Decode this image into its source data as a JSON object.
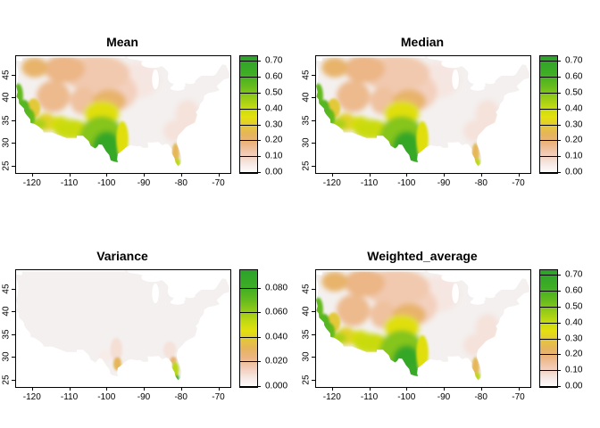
{
  "figure": {
    "background": "#ffffff"
  },
  "colors": {
    "land_base": "#F3F0EF",
    "frame": "#000000",
    "text": "#000000"
  },
  "palette": {
    "stops": [
      [
        0.0,
        "#FFFFFF"
      ],
      [
        0.08,
        "#F6E7E2"
      ],
      [
        0.16,
        "#F2CDB9"
      ],
      [
        0.25,
        "#ECB583"
      ],
      [
        0.33,
        "#E6B45D"
      ],
      [
        0.41,
        "#E3C936"
      ],
      [
        0.48,
        "#E4E00E"
      ],
      [
        0.56,
        "#C3DA12"
      ],
      [
        0.64,
        "#99CC18"
      ],
      [
        0.74,
        "#67BB1E"
      ],
      [
        0.85,
        "#3FAD25"
      ],
      [
        1.0,
        "#2BA22B"
      ]
    ]
  },
  "region_profiles": {
    "mean_like": [
      {
        "name": "northern-plains-salmon",
        "lon": -103.0,
        "lat": 45.5,
        "rx": 9.0,
        "ry": 4.0,
        "value": 0.13
      },
      {
        "name": "central-plains-salmon",
        "lon": -99.0,
        "lat": 41.5,
        "rx": 7.0,
        "ry": 4.5,
        "value": 0.11
      },
      {
        "name": "upper-midwest-faint",
        "lon": -92.0,
        "lat": 44.0,
        "rx": 6.0,
        "ry": 4.0,
        "value": 0.06
      },
      {
        "name": "pacific-nw-interior-tan",
        "lon": -119.5,
        "lat": 46.8,
        "rx": 3.5,
        "ry": 2.2,
        "value": 0.22
      },
      {
        "name": "northern-rockies-tan",
        "lon": -111.5,
        "lat": 46.5,
        "rx": 5.5,
        "ry": 3.0,
        "value": 0.18
      },
      {
        "name": "great-basin-tan",
        "lon": -114.5,
        "lat": 40.5,
        "rx": 4.5,
        "ry": 3.5,
        "value": 0.17
      },
      {
        "name": "colorado-tan",
        "lon": -106.5,
        "lat": 39.5,
        "rx": 3.5,
        "ry": 3.0,
        "value": 0.15
      },
      {
        "name": "kansas-tan",
        "lon": -99.5,
        "lat": 39.5,
        "rx": 4.5,
        "ry": 2.5,
        "value": 0.22
      },
      {
        "name": "oklahoma-yellow-fringe",
        "lon": -101.5,
        "lat": 36.8,
        "rx": 4.8,
        "ry": 2.6,
        "value": 0.36
      },
      {
        "name": "texas-broad-green",
        "lon": -101.5,
        "lat": 31.3,
        "rx": 6.0,
        "ry": 4.8,
        "value": 0.5
      },
      {
        "name": "texas-core-green",
        "lon": -100.2,
        "lat": 29.2,
        "rx": 3.8,
        "ry": 3.6,
        "value": 0.68
      },
      {
        "name": "south-texas-tip-green",
        "lon": -98.6,
        "lat": 26.8,
        "rx": 1.6,
        "ry": 1.8,
        "value": 0.66
      },
      {
        "name": "east-texas-yellow-fringe",
        "lon": -96.0,
        "lat": 31.0,
        "rx": 1.6,
        "ry": 4.0,
        "value": 0.36
      },
      {
        "name": "nm-az-yellow-green",
        "lon": -109.8,
        "lat": 33.2,
        "rx": 4.6,
        "ry": 2.2,
        "value": 0.4
      },
      {
        "name": "central-arizona",
        "lon": -112.8,
        "lat": 34.3,
        "rx": 2.6,
        "ry": 1.8,
        "value": 0.38
      },
      {
        "name": "california-north-coast",
        "lon": -123.9,
        "lat": 40.5,
        "rx": 1.3,
        "ry": 2.8,
        "value": 0.55
      },
      {
        "name": "california-central-coast",
        "lon": -122.3,
        "lat": 37.5,
        "rx": 1.5,
        "ry": 2.2,
        "value": 0.58
      },
      {
        "name": "california-mid-coast",
        "lon": -121.0,
        "lat": 35.8,
        "rx": 1.6,
        "ry": 2.0,
        "value": 0.55
      },
      {
        "name": "southern-california",
        "lon": -119.0,
        "lat": 34.3,
        "rx": 2.6,
        "ry": 1.4,
        "value": 0.45
      },
      {
        "name": "sierra-foothills-yellow",
        "lon": -119.8,
        "lat": 37.8,
        "rx": 1.8,
        "ry": 2.2,
        "value": 0.3
      },
      {
        "name": "mojave-yellow",
        "lon": -116.5,
        "lat": 34.8,
        "rx": 2.6,
        "ry": 2.0,
        "value": 0.32
      },
      {
        "name": "florida-peninsula-orange",
        "lon": -81.7,
        "lat": 27.8,
        "rx": 1.0,
        "ry": 2.4,
        "value": 0.25
      },
      {
        "name": "florida-tip-yellow",
        "lon": -81.2,
        "lat": 25.9,
        "rx": 0.8,
        "ry": 1.0,
        "value": 0.42
      },
      {
        "name": "southeast-pink",
        "lon": -81.8,
        "lat": 32.8,
        "rx": 3.2,
        "ry": 2.4,
        "value": 0.07
      },
      {
        "name": "mid-atlantic-pink",
        "lon": -78.5,
        "lat": 36.5,
        "rx": 3.2,
        "ry": 3.2,
        "value": 0.07
      }
    ],
    "variance": [
      {
        "name": "texas-inland-pink-plume",
        "lon": -97.6,
        "lat": 31.8,
        "rx": 1.6,
        "ry": 2.6,
        "value": 0.01
      },
      {
        "name": "texas-coast-orange",
        "lon": -97.3,
        "lat": 28.7,
        "rx": 1.1,
        "ry": 1.5,
        "value": 0.032
      },
      {
        "name": "georgia-pink-plume",
        "lon": -83.3,
        "lat": 31.8,
        "rx": 1.7,
        "ry": 1.8,
        "value": 0.009
      },
      {
        "name": "north-florida-orange",
        "lon": -82.3,
        "lat": 29.4,
        "rx": 0.9,
        "ry": 0.9,
        "value": 0.028
      },
      {
        "name": "florida-core-yellow-green",
        "lon": -81.8,
        "lat": 27.4,
        "rx": 1.0,
        "ry": 1.7,
        "value": 0.055
      },
      {
        "name": "florida-tip-green",
        "lon": -81.3,
        "lat": 25.5,
        "rx": 0.55,
        "ry": 0.8,
        "value": 0.085
      },
      {
        "name": "west-texas-faint",
        "lon": -100.5,
        "lat": 30.5,
        "rx": 1.6,
        "ry": 1.3,
        "value": 0.006
      }
    ]
  },
  "chart_data": [
    {
      "type": "heatmap",
      "subtype": "us-raster-map",
      "title": "Mean",
      "x_ticks": [
        -120,
        -110,
        -100,
        -90,
        -80,
        -70
      ],
      "x_tick_labels": [
        "-120",
        "-110",
        "-100",
        "-90",
        "-80",
        "-70"
      ],
      "y_ticks": [
        25,
        30,
        35,
        40,
        45
      ],
      "y_tick_labels": [
        "25",
        "30",
        "35",
        "40",
        "45"
      ],
      "x_range": [
        -124.5,
        -67.0
      ],
      "y_range": [
        23.6,
        49.3
      ],
      "legend": {
        "max": 0.735,
        "values": [
          0.0,
          0.1,
          0.2,
          0.3,
          0.4,
          0.5,
          0.6,
          0.7
        ],
        "labels": [
          "0.00",
          "0.10",
          "0.20",
          "0.30",
          "0.40",
          "0.50",
          "0.60",
          "0.70"
        ]
      },
      "regions_profile": "mean_like"
    },
    {
      "type": "heatmap",
      "subtype": "us-raster-map",
      "title": "Median",
      "x_ticks": [
        -120,
        -110,
        -100,
        -90,
        -80,
        -70
      ],
      "x_tick_labels": [
        "-120",
        "-110",
        "-100",
        "-90",
        "-80",
        "-70"
      ],
      "y_ticks": [
        25,
        30,
        35,
        40,
        45
      ],
      "y_tick_labels": [
        "25",
        "30",
        "35",
        "40",
        "45"
      ],
      "x_range": [
        -124.5,
        -67.0
      ],
      "y_range": [
        23.6,
        49.3
      ],
      "legend": {
        "max": 0.735,
        "values": [
          0.0,
          0.1,
          0.2,
          0.3,
          0.4,
          0.5,
          0.6,
          0.7
        ],
        "labels": [
          "0.00",
          "0.10",
          "0.20",
          "0.30",
          "0.40",
          "0.50",
          "0.60",
          "0.70"
        ]
      },
      "regions_profile": "mean_like"
    },
    {
      "type": "heatmap",
      "subtype": "us-raster-map",
      "title": "Variance",
      "x_ticks": [
        -120,
        -110,
        -100,
        -90,
        -80,
        -70
      ],
      "x_tick_labels": [
        "-120",
        "-110",
        "-100",
        "-90",
        "-80",
        "-70"
      ],
      "y_ticks": [
        25,
        30,
        35,
        40,
        45
      ],
      "y_tick_labels": [
        "25",
        "30",
        "35",
        "40",
        "45"
      ],
      "x_range": [
        -124.5,
        -67.0
      ],
      "y_range": [
        23.6,
        49.3
      ],
      "legend": {
        "max": 0.095,
        "values": [
          0.0,
          0.02,
          0.04,
          0.06,
          0.08
        ],
        "labels": [
          "0.000",
          "0.020",
          "0.040",
          "0.060",
          "0.080"
        ]
      },
      "regions_profile": "variance"
    },
    {
      "type": "heatmap",
      "subtype": "us-raster-map",
      "title": "Weighted_average",
      "x_ticks": [
        -120,
        -110,
        -100,
        -90,
        -80,
        -70
      ],
      "x_tick_labels": [
        "-120",
        "-110",
        "-100",
        "-90",
        "-80",
        "-70"
      ],
      "y_ticks": [
        25,
        30,
        35,
        40,
        45
      ],
      "y_tick_labels": [
        "25",
        "30",
        "35",
        "40",
        "45"
      ],
      "x_range": [
        -124.5,
        -67.0
      ],
      "y_range": [
        23.6,
        49.3
      ],
      "legend": {
        "max": 0.735,
        "values": [
          0.0,
          0.1,
          0.2,
          0.3,
          0.4,
          0.5,
          0.6,
          0.7
        ],
        "labels": [
          "0.00",
          "0.10",
          "0.20",
          "0.30",
          "0.40",
          "0.50",
          "0.60",
          "0.70"
        ]
      },
      "regions_profile": "mean_like"
    }
  ]
}
